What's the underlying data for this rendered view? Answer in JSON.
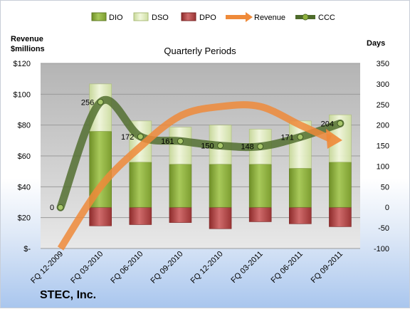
{
  "chart_data": {
    "type": "bar",
    "title": "Quarterly Periods",
    "company": "STEC, Inc.",
    "categories": [
      "FQ 12-2009",
      "FQ 03-2010",
      "FQ 06-2010",
      "FQ 09-2010",
      "FQ 12-2010",
      "FQ 03-2011",
      "FQ 06-2011",
      "FQ 09-2011"
    ],
    "y_left": {
      "label_line1": "Revenue",
      "label_line2": "$millions",
      "range": [
        0,
        120
      ],
      "ticks": [
        "$-",
        "$20",
        "$40",
        "$60",
        "$80",
        "$100",
        "$120"
      ]
    },
    "y_right": {
      "label": "Days",
      "range": [
        -100,
        350
      ],
      "ticks": [
        "-100",
        "-50",
        "0",
        "50",
        "100",
        "150",
        "200",
        "250",
        "300",
        "350"
      ]
    },
    "legend": [
      "DIO",
      "DSO",
      "DPO",
      "Revenue",
      "CCC"
    ],
    "legend_position": "top",
    "series": [
      {
        "name": "DIO",
        "axis": "right",
        "values": [
          null,
          185,
          110,
          105,
          105,
          105,
          95,
          110
        ]
      },
      {
        "name": "DSO",
        "axis": "right",
        "values": [
          null,
          115,
          100,
          90,
          95,
          85,
          115,
          115
        ]
      },
      {
        "name": "DPO",
        "axis": "right",
        "values": [
          null,
          -45,
          -42,
          -37,
          -52,
          -35,
          -40,
          -47
        ]
      },
      {
        "name": "Revenue",
        "axis": "left",
        "values": [
          0,
          40,
          66,
          86,
          92,
          92,
          80,
          72
        ]
      },
      {
        "name": "CCC",
        "axis": "right",
        "values": [
          0,
          256,
          172,
          161,
          150,
          148,
          171,
          204
        ],
        "labels": [
          "0",
          "256",
          "172",
          "161",
          "150",
          "148",
          "171",
          "204"
        ]
      }
    ],
    "colors": {
      "DIO": "#8fb13e",
      "DSO": "#dde9b2",
      "DPO": "#b84a4a",
      "Revenue": "#ef8a3a",
      "CCC": "#4e6b2b",
      "plot_bg": "#c9c9c9"
    },
    "grid": true
  }
}
